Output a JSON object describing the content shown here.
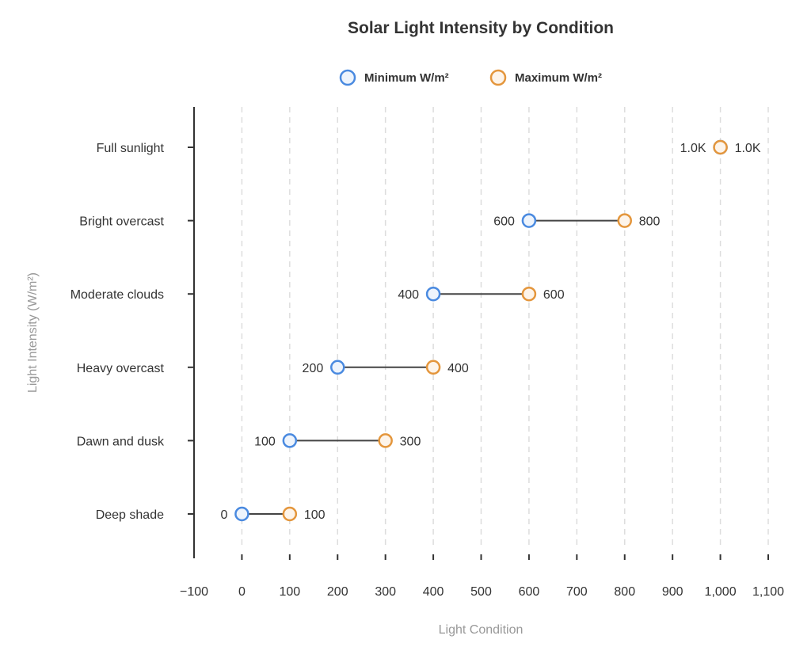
{
  "chart_data": {
    "type": "dumbbell",
    "title": "Solar Light Intensity by Condition",
    "xlabel": "Light Condition",
    "ylabel": "Light Intensity (W/m²)",
    "xlim": [
      -100,
      1100
    ],
    "xticks": [
      -100,
      0,
      100,
      200,
      300,
      400,
      500,
      600,
      700,
      800,
      900,
      1000,
      1100
    ],
    "xtick_labels": [
      "−100",
      "0",
      "100",
      "200",
      "300",
      "400",
      "500",
      "600",
      "700",
      "800",
      "900",
      "1,000",
      "1,100"
    ],
    "grid": "vertical dashed",
    "legend_position": "top",
    "categories": [
      "Full sunlight",
      "Bright overcast",
      "Moderate clouds",
      "Heavy overcast",
      "Dawn and dusk",
      "Deep shade"
    ],
    "series": [
      {
        "name": "Minimum W/m²",
        "color": "#4a8ae0",
        "values": [
          1000,
          600,
          400,
          200,
          100,
          0
        ],
        "labels": [
          "1.0K",
          "600",
          "400",
          "200",
          "100",
          "0"
        ]
      },
      {
        "name": "Maximum W/m²",
        "color": "#e4963c",
        "values": [
          1000,
          800,
          600,
          400,
          300,
          100
        ],
        "labels": [
          "1.0K",
          "800",
          "600",
          "400",
          "300",
          "100"
        ]
      }
    ]
  }
}
